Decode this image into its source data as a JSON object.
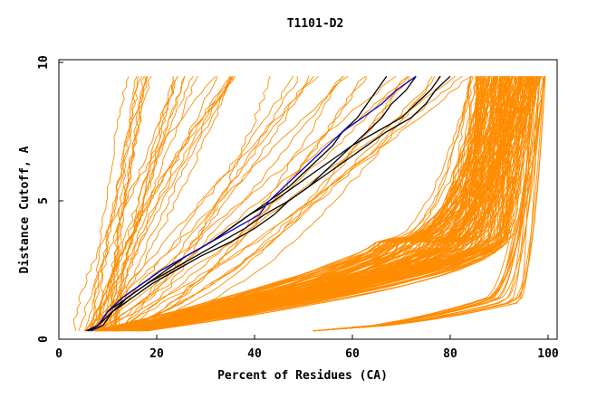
{
  "chart_data": {
    "type": "line",
    "title": "T1101-D2",
    "xlabel": "Percent of Residues (CA)",
    "ylabel": "Distance Cutoff, A",
    "xlim": [
      0,
      100
    ],
    "ylim": [
      0,
      10
    ],
    "x_ticks": [
      0,
      20,
      40,
      60,
      80,
      100
    ],
    "y_ticks": [
      0,
      5,
      10
    ],
    "grid": false,
    "colors": {
      "orange": "#ff8c00",
      "blue": "#0000cc",
      "black": "#000000"
    },
    "y_levels": [
      0.3,
      0.5,
      1.0,
      1.5,
      2.0,
      2.5,
      3.0,
      3.5,
      4.0,
      4.5,
      5.0,
      5.5,
      6.0,
      6.5,
      7.0,
      7.5,
      8.0,
      8.5,
      9.0,
      9.5
    ],
    "highlighted_series": [
      {
        "name": "black-1",
        "color": "#000000",
        "x": [
          5.5,
          8,
          11,
          14,
          18,
          23,
          28,
          33,
          38,
          42,
          47,
          51,
          54,
          57,
          60,
          63,
          66,
          68,
          71,
          73
        ]
      },
      {
        "name": "black-2",
        "color": "#000000",
        "x": [
          6.0,
          8,
          10,
          13,
          17,
          21,
          26,
          31,
          35,
          39,
          44,
          48,
          52,
          56,
          60,
          65,
          70,
          73,
          76,
          78
        ]
      },
      {
        "name": "black-3",
        "color": "#000000",
        "x": [
          6.5,
          9,
          11,
          15,
          19,
          24,
          29,
          35,
          40,
          44,
          47,
          51,
          55,
          59,
          63,
          67,
          72,
          75,
          77,
          80
        ]
      },
      {
        "name": "black-4",
        "color": "#000000",
        "x": [
          6.0,
          8,
          10,
          14,
          18,
          22,
          26,
          31,
          35,
          39,
          43,
          47,
          50,
          53,
          56,
          58,
          61,
          63,
          65,
          67
        ]
      },
      {
        "name": "blue",
        "color": "#0000cc",
        "x": [
          6.5,
          8,
          10,
          13,
          17,
          21,
          26,
          31,
          36,
          41,
          43,
          46,
          49,
          52,
          55,
          58,
          62,
          66,
          69,
          73
        ]
      }
    ]
  }
}
